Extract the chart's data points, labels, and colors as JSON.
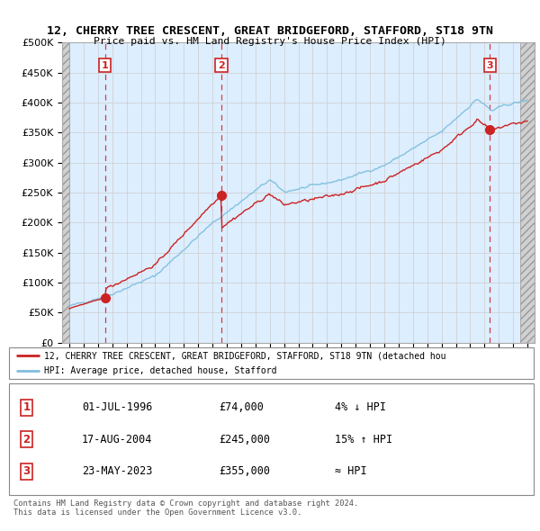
{
  "title": "12, CHERRY TREE CRESCENT, GREAT BRIDGEFORD, STAFFORD, ST18 9TN",
  "subtitle": "Price paid vs. HM Land Registry's House Price Index (HPI)",
  "ylim": [
    0,
    500000
  ],
  "yticks": [
    0,
    50000,
    100000,
    150000,
    200000,
    250000,
    300000,
    350000,
    400000,
    450000,
    500000
  ],
  "ytick_labels": [
    "£0",
    "£50K",
    "£100K",
    "£150K",
    "£200K",
    "£250K",
    "£300K",
    "£350K",
    "£400K",
    "£450K",
    "£500K"
  ],
  "xlim_start": 1993.5,
  "xlim_end": 2026.5,
  "hpi_color": "#7fbfdf",
  "price_color": "#cc2222",
  "transactions": [
    {
      "num": 1,
      "date": "01-JUL-1996",
      "year": 1996.5,
      "price": 74000,
      "label": "4% ↓ HPI"
    },
    {
      "num": 2,
      "date": "17-AUG-2004",
      "year": 2004.62,
      "price": 245000,
      "label": "15% ↑ HPI"
    },
    {
      "num": 3,
      "date": "23-MAY-2023",
      "year": 2023.38,
      "price": 355000,
      "label": "≈ HPI"
    }
  ],
  "legend_line1": "12, CHERRY TREE CRESCENT, GREAT BRIDGEFORD, STAFFORD, ST18 9TN (detached hou",
  "legend_line2": "HPI: Average price, detached house, Stafford",
  "footer1": "Contains HM Land Registry data © Crown copyright and database right 2024.",
  "footer2": "This data is licensed under the Open Government Licence v3.0.",
  "grid_color": "#cccccc",
  "bg_color": "#ddeeff"
}
